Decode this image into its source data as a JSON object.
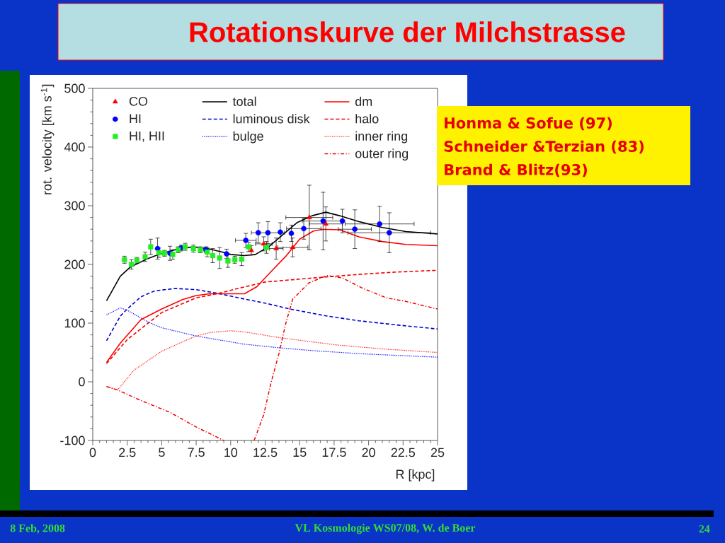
{
  "chart_data": {
    "type": "line",
    "title": "Rotationskurve der Milchstrasse",
    "xlabel": "R [kpc]",
    "ylabel": "rot. velocity [km s$^{-1}$]",
    "xlim": [
      0,
      25
    ],
    "ylim": [
      -100,
      500
    ],
    "xticks": [
      0,
      2.5,
      5,
      7.5,
      10,
      12.5,
      15,
      17.5,
      20,
      22.5,
      25
    ],
    "yticks": [
      -100,
      0,
      100,
      200,
      300,
      400,
      500
    ],
    "legend": "top",
    "series": [
      {
        "name": "CO",
        "type": "scatter",
        "color": "#ff0000",
        "marker": "triangle",
        "x": [
          11.5,
          12.4,
          13.3,
          14.5,
          15.7,
          16.9
        ],
        "values": [
          224,
          235,
          227,
          229,
          280,
          269
        ],
        "errors": [
          8,
          12,
          18,
          16,
          55,
          29
        ],
        "xerrors": [
          null,
          0.6,
          0.5,
          1.1,
          1.7,
          1.2
        ]
      },
      {
        "name": "HI",
        "type": "scatter",
        "color": "#0000ff",
        "marker": "circle",
        "x": [
          4.7,
          5.6,
          6.4,
          8.2,
          9.7,
          11.1,
          12.0,
          12.7,
          13.6,
          14.4,
          15.3,
          16.7,
          18.1,
          19.0,
          20.8,
          21.5
        ],
        "values": [
          227,
          219,
          228,
          225,
          218,
          241,
          254,
          254,
          255,
          253,
          261,
          274,
          274,
          260,
          269,
          254
        ],
        "errors": [
          18,
          12,
          5,
          5,
          8,
          12,
          17,
          19,
          16,
          14,
          18,
          49,
          20,
          33,
          30,
          34
        ],
        "xerrors": [
          null,
          null,
          null,
          null,
          null,
          0.75,
          null,
          1.2,
          null,
          null,
          1.25,
          1.5,
          null,
          1.2,
          2.5,
          3
        ]
      },
      {
        "name": "HI, HII",
        "type": "scatter",
        "color": "#22ee22",
        "marker": "square",
        "x": [
          2.3,
          2.8,
          3.2,
          3.8,
          4.2,
          4.8,
          5.2,
          5.8,
          6.2,
          6.7,
          7.3,
          7.8,
          8.3,
          8.7,
          9.2,
          9.8,
          10.3,
          10.8,
          11.3,
          12.6
        ],
        "values": [
          208,
          200,
          207,
          213,
          230,
          220,
          219,
          217,
          225,
          230,
          227,
          225,
          221,
          215,
          211,
          206,
          208,
          209,
          230,
          229
        ],
        "errors": [
          6,
          8,
          5,
          8,
          13,
          8,
          5,
          8,
          5,
          6,
          6,
          5,
          8,
          12,
          18,
          11,
          6,
          11,
          8,
          10
        ]
      },
      {
        "name": "total",
        "type": "line",
        "color": "#000000",
        "line_style": "solid",
        "x": [
          1,
          2,
          2.7,
          3.9,
          4.9,
          6.3,
          7.3,
          8.3,
          9.4,
          10,
          11,
          11.8,
          12.8,
          13.8,
          14.8,
          15.9,
          16.9,
          17.9,
          19.3,
          21,
          22.7,
          25
        ],
        "values": [
          138,
          180,
          195,
          209,
          218,
          227,
          230,
          227,
          221,
          217,
          215,
          217,
          231,
          251,
          271,
          283,
          289,
          283,
          273,
          263,
          256,
          252
        ]
      },
      {
        "name": "luminous disk",
        "type": "line",
        "color": "#0000cc",
        "line_style": "dashed",
        "x": [
          1,
          2,
          2.5,
          3.5,
          4.5,
          6,
          7.5,
          9,
          11,
          12.5,
          14.3,
          17,
          19.3,
          22,
          25
        ],
        "values": [
          70,
          112,
          124,
          145,
          155,
          159,
          157,
          151,
          141,
          134,
          124,
          112,
          104,
          97,
          90
        ]
      },
      {
        "name": "bulge",
        "type": "line",
        "color": "#2020ff",
        "line_style": "dotted",
        "x": [
          1,
          2,
          2.5,
          4,
          5,
          7.5,
          10,
          11,
          13.5,
          16,
          19.3,
          22,
          25
        ],
        "values": [
          114,
          126,
          122,
          102,
          92,
          78,
          68,
          64,
          58,
          53,
          48,
          45,
          42
        ]
      },
      {
        "name": "dm",
        "type": "line",
        "color": "#ff0000",
        "line_style": "solid",
        "x": [
          1,
          2,
          3.5,
          5,
          6.5,
          7.5,
          8.5,
          10,
          11,
          11.9,
          12.9,
          14,
          15,
          16,
          16.7,
          17.9,
          19.3,
          21,
          22.7,
          25
        ],
        "values": [
          33,
          66,
          106,
          124,
          140,
          147,
          150,
          150,
          150,
          162,
          187,
          214,
          243,
          257,
          260,
          259,
          247,
          239,
          234,
          232
        ]
      },
      {
        "name": "halo",
        "type": "line",
        "color": "#ee0000",
        "line_style": "dashed",
        "x": [
          1,
          2.5,
          5,
          7.5,
          9,
          10.7,
          12.5,
          14.5,
          16,
          19.3,
          22,
          25
        ],
        "values": [
          31,
          72,
          118,
          143,
          150,
          160,
          170,
          174,
          177,
          183,
          187,
          190
        ]
      },
      {
        "name": "inner ring",
        "type": "line",
        "color": "#ff3030",
        "line_style": "dotted",
        "x": [
          1,
          1.8,
          3,
          5,
          6.5,
          7.5,
          8.5,
          10,
          11,
          13.6,
          17.6,
          21,
          25
        ],
        "values": [
          -8,
          -14,
          20,
          52,
          68,
          78,
          84,
          87,
          85,
          75,
          63,
          56,
          50
        ]
      },
      {
        "name": "outer ring",
        "type": "line",
        "color": "#ee0000",
        "line_style": "dashdot",
        "x": [
          1,
          1.8,
          3.5,
          5.6,
          7.5,
          9.5,
          10.5,
          11.7,
          12.4,
          12.9,
          13.5,
          14,
          14.5,
          15.7,
          17,
          18.1,
          19.6,
          21.3,
          22.7,
          25
        ],
        "values": [
          -8,
          -14,
          -32,
          -52,
          -77,
          -100,
          null,
          -100,
          -56,
          -4,
          48,
          100,
          141,
          169,
          181,
          177,
          159,
          143,
          137,
          124
        ]
      }
    ],
    "annotations": [
      "Honma & Sofue (97)",
      "Schneider &Terzian (83)",
      "Brand & Blitz(93)",
      "8 Feb, 2008",
      "VL Kosmologie WS07/08, W. de Boer",
      "24"
    ]
  }
}
